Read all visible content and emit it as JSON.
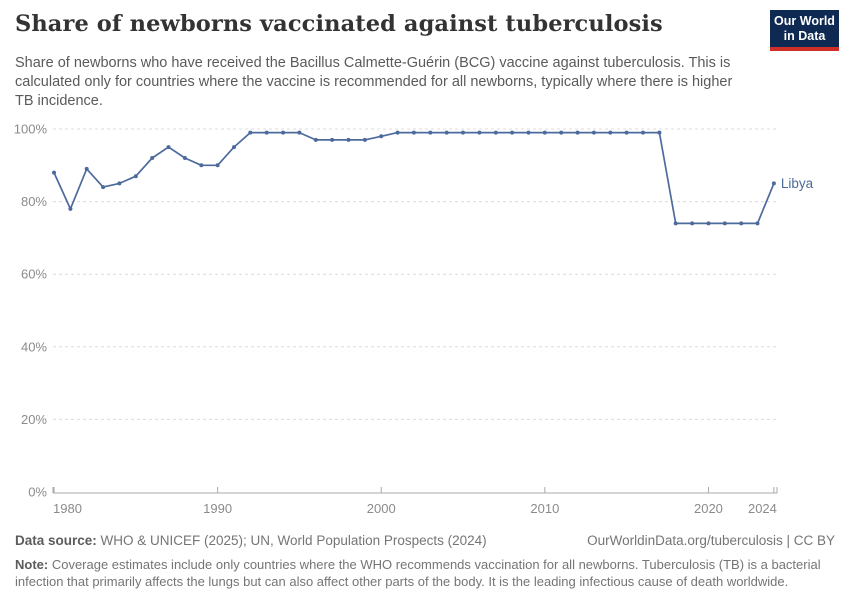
{
  "header": {
    "title": "Share of newborns vaccinated against tuberculosis",
    "subtitle": "Share of newborns who have received the Bacillus Calmette-Guérin (BCG) vaccine against tuberculosis. This is calculated only for countries where the vaccine is recommended for all newborns, typically where there is higher TB incidence.",
    "logo": {
      "line1": "Our World",
      "line2": "in Data",
      "bg_color": "#0e2a52",
      "stripe_color": "#cf2f29"
    }
  },
  "chart_data": {
    "type": "line",
    "title": "Share of newborns vaccinated against tuberculosis",
    "x": [
      1980,
      1981,
      1982,
      1983,
      1984,
      1985,
      1986,
      1987,
      1988,
      1989,
      1990,
      1991,
      1992,
      1993,
      1994,
      1995,
      1996,
      1997,
      1998,
      1999,
      2000,
      2001,
      2002,
      2003,
      2004,
      2005,
      2006,
      2007,
      2008,
      2009,
      2010,
      2011,
      2012,
      2013,
      2014,
      2015,
      2016,
      2017,
      2018,
      2019,
      2020,
      2021,
      2022,
      2023,
      2024
    ],
    "series": [
      {
        "name": "Libya",
        "color": "#4c6a9c",
        "values": [
          88,
          78,
          89,
          84,
          85,
          87,
          92,
          95,
          92,
          90,
          90,
          95,
          99,
          99,
          99,
          99,
          97,
          97,
          97,
          97,
          98,
          99,
          99,
          99,
          99,
          99,
          99,
          99,
          99,
          99,
          99,
          99,
          99,
          99,
          99,
          99,
          99,
          99,
          74,
          74,
          74,
          74,
          74,
          74,
          85
        ]
      }
    ],
    "xlabel": "",
    "ylabel": "",
    "ylim": [
      0,
      100
    ],
    "yticks": [
      0,
      20,
      40,
      60,
      80,
      100
    ],
    "ytick_suffix": "%",
    "xticks": [
      1980,
      1990,
      2000,
      2010,
      2020,
      2024
    ],
    "grid": "horizontal-dashed",
    "legend_position": "end-of-line",
    "end_label": "Libya",
    "colors": {
      "line": "#4c6a9c",
      "gridline": "#dcdcdc",
      "axis": "#a8a8a8",
      "tick_label": "#8b8b8b"
    }
  },
  "footer": {
    "datasource_label": "Data source:",
    "datasource_text": " WHO & UNICEF (2025); UN, World Population Prospects (2024)",
    "link_text": "OurWorldinData.org/tuberculosis | CC BY",
    "note_label": "Note:",
    "note_text": " Coverage estimates include only countries where the WHO recommends vaccination for all newborns. Tuberculosis (TB) is a bacterial infection that primarily affects the lungs but can also affect other parts of the body. It is the leading infectious cause of death worldwide."
  }
}
